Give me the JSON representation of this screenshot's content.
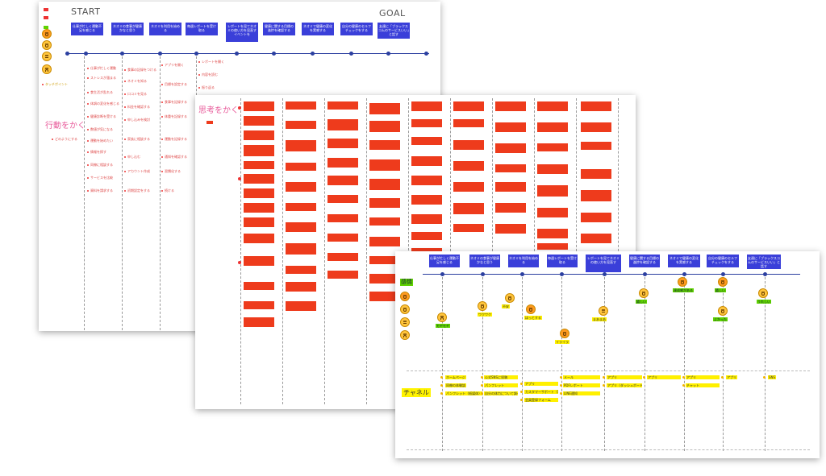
{
  "map1": {
    "start_label": "START",
    "goal_label": "GOAL",
    "section_label": "行動をかく",
    "headers": [
      "仕事が忙しく運動不足を感じる",
      "ネオミの食事が健康かなと思う",
      "ネオミを利用を始める",
      "毎週レポートを受け取る",
      "レポートを見てネオミの使い方を見直すイベントを",
      "健康に関する目標の進捗を確認する",
      "ネオミで健康の変化を実感する",
      "自分の健康のセルフチェックをする",
      "友達に「ブラックスコムのサービスいい」と話す"
    ],
    "legend": [
      "行動",
      "思考",
      "タッチポイント"
    ]
  },
  "map2": {
    "section_label": "思考をかく"
  },
  "map3": {
    "section_label": "感情",
    "channel_label": "チャネル",
    "headers": [
      "仕事が忙しく運動不足を感じる",
      "ネオミの食事が健康かなと思う",
      "ネオミを利用を始める",
      "毎週レポートを受け取る",
      "レポートを見てネオミの使い方を見直す",
      "健康に関する目標の進捗を確認する",
      "ネオミで健康の変化を実感する",
      "自分の健康のセルフチェックをする",
      "友達に「ブラックスコムのサービスいい」と話す"
    ],
    "emotion_labels": [
      "モヤモヤ",
      "ワクワク",
      "不安",
      "ほっとする",
      "イライラ",
      "まあまあ",
      "嬉しい",
      "達成感がある",
      "嬉しい",
      "よかった",
      "モヤモヤ",
      "うれしい"
    ],
    "channels": [
      [
        "ホームページ",
        "同僚の体験談",
        "パンフレット（紙媒体）"
      ],
      [
        "公式SNSに投稿",
        "パンフレット",
        "自分の体力について調べる"
      ],
      [
        "アプリ",
        "カスタマーサポート（電話）",
        "会員登録フォーム"
      ],
      [
        "メール",
        "PDFレポート",
        "LINE通知"
      ],
      [
        "アプリ",
        "アプリ（ダッシュボード）"
      ],
      [
        "アプリ"
      ],
      [
        "アプリ",
        "チャット"
      ],
      [
        "アプリ"
      ],
      [
        "SNS"
      ]
    ]
  }
}
